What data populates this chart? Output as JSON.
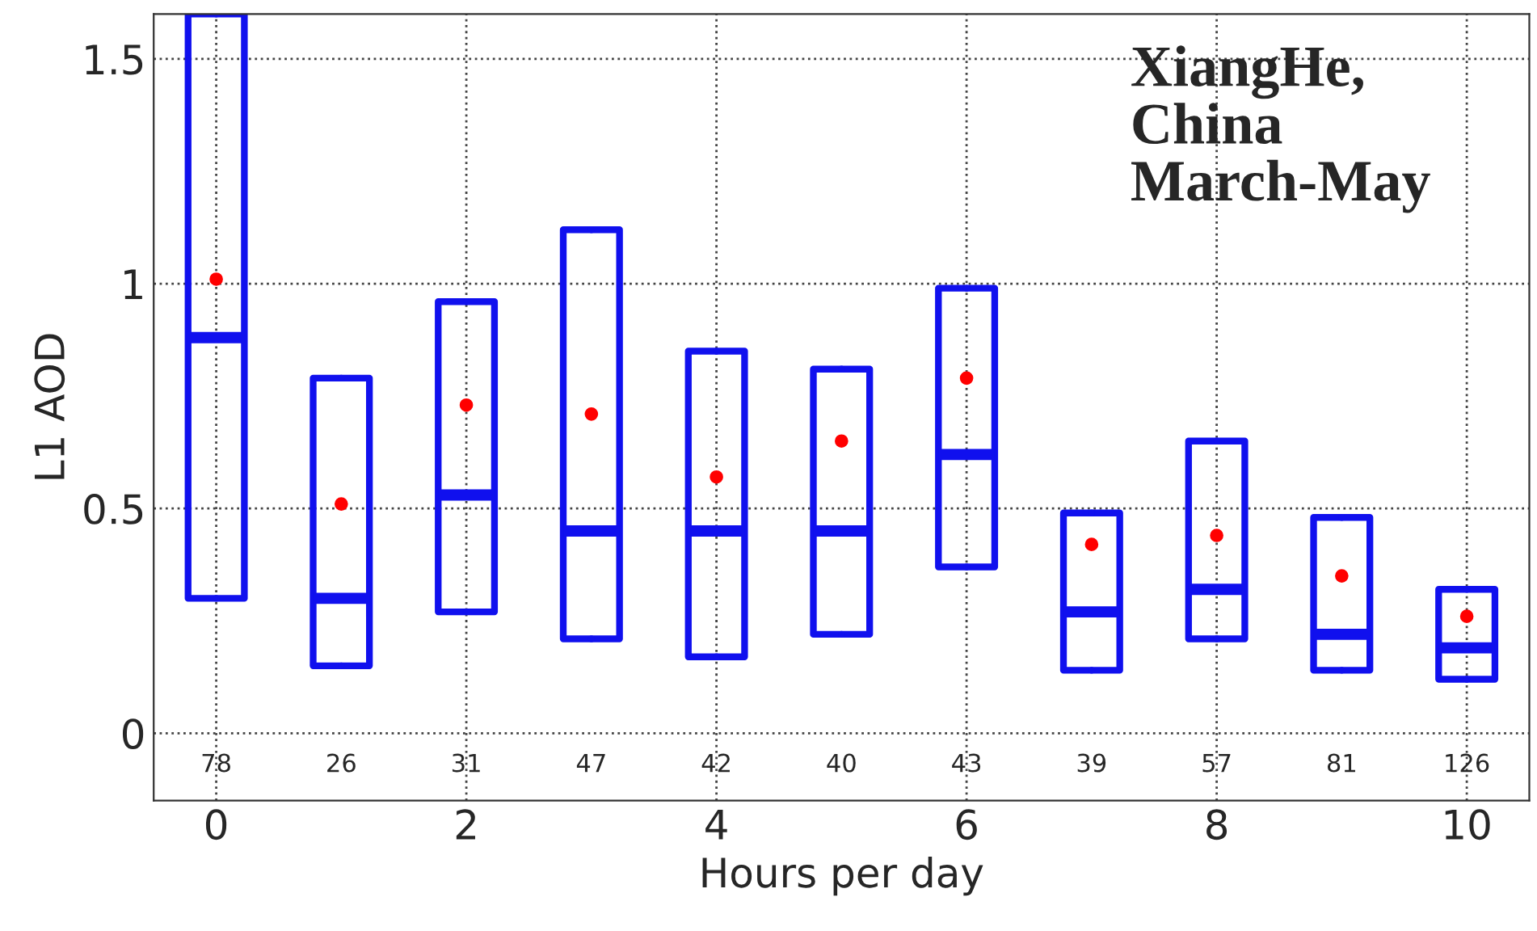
{
  "chart_data": {
    "type": "box",
    "xlabel": "Hours per day",
    "ylabel": "L1 AOD",
    "x": [
      0,
      1,
      2,
      3,
      4,
      5,
      6,
      7,
      8,
      9,
      10
    ],
    "boxes": [
      {
        "low": 0.3,
        "q1": 0.3,
        "median": 0.88,
        "q3": 1.6,
        "high": 1.6,
        "mean": 1.01
      },
      {
        "low": 0.15,
        "q1": 0.15,
        "median": 0.3,
        "q3": 0.79,
        "high": 0.79,
        "mean": 0.51
      },
      {
        "low": 0.27,
        "q1": 0.27,
        "median": 0.53,
        "q3": 0.96,
        "high": 0.96,
        "mean": 0.73
      },
      {
        "low": 0.21,
        "q1": 0.21,
        "median": 0.45,
        "q3": 1.12,
        "high": 1.12,
        "mean": 0.71
      },
      {
        "low": 0.17,
        "q1": 0.17,
        "median": 0.45,
        "q3": 0.85,
        "high": 0.85,
        "mean": 0.57
      },
      {
        "low": 0.22,
        "q1": 0.22,
        "median": 0.45,
        "q3": 0.81,
        "high": 0.81,
        "mean": 0.65
      },
      {
        "low": 0.37,
        "q1": 0.37,
        "median": 0.62,
        "q3": 0.99,
        "high": 0.99,
        "mean": 0.79
      },
      {
        "low": 0.14,
        "q1": 0.14,
        "median": 0.27,
        "q3": 0.49,
        "high": 0.49,
        "mean": 0.42
      },
      {
        "low": 0.21,
        "q1": 0.21,
        "median": 0.32,
        "q3": 0.65,
        "high": 0.65,
        "mean": 0.44
      },
      {
        "low": 0.14,
        "q1": 0.14,
        "median": 0.22,
        "q3": 0.48,
        "high": 0.48,
        "mean": 0.35
      },
      {
        "low": 0.12,
        "q1": 0.12,
        "median": 0.19,
        "q3": 0.32,
        "high": 0.32,
        "mean": 0.26
      }
    ],
    "color": "#1010ee",
    "xlim": [
      -0.5,
      10.5
    ],
    "xticks": [
      0,
      2,
      4,
      6,
      8,
      10
    ],
    "ylim": [
      -0.15,
      1.6
    ],
    "yticks": [
      0,
      0.5,
      1,
      1.5
    ],
    "grid": true,
    "annotations": [
      "78",
      "26",
      "31",
      "47",
      "42",
      "40",
      "43",
      "39",
      "57",
      "81",
      "126",
      "XiangHe,\nChina\nMarch-May"
    ]
  }
}
